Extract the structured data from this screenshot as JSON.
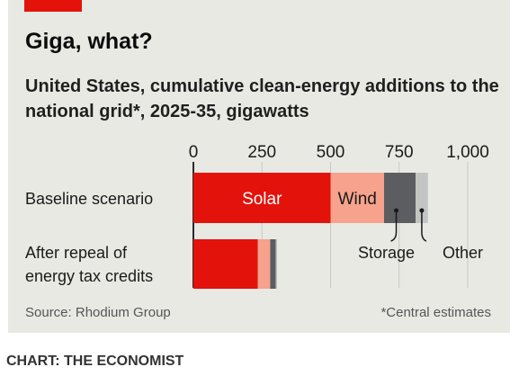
{
  "title": "Giga, what?",
  "subtitle": "United States, cumulative clean-energy additions to the national grid*, 2025-35, gigawatts",
  "source": "Source: Rhodium Group",
  "footnote": "*Central estimates",
  "credit": "CHART: THE ECONOMIST",
  "colors": {
    "Solar": "#e3120b",
    "Wind": "#f6a28c",
    "Storage": "#5b5d61",
    "Other": "#c3c5c3",
    "panel": "#e9e9e4",
    "accent": "#e3120b"
  },
  "chart_data": {
    "type": "bar",
    "orientation": "horizontal",
    "stacked": true,
    "categories": [
      [
        "Baseline scenario"
      ],
      [
        "After repeal of",
        "energy tax credits"
      ]
    ],
    "series": [
      {
        "name": "Solar",
        "values": [
          500,
          235
        ]
      },
      {
        "name": "Wind",
        "values": [
          195,
          45
        ]
      },
      {
        "name": "Storage",
        "values": [
          115,
          20
        ]
      },
      {
        "name": "Other",
        "values": [
          45,
          5
        ]
      }
    ],
    "xticks": [
      0,
      250,
      500,
      750,
      1000
    ],
    "xtick_labels": [
      "0",
      "250",
      "500",
      "750",
      "1,000"
    ],
    "xlim": [
      0,
      1000
    ],
    "grid": "vertical",
    "legend": "inline labels"
  }
}
